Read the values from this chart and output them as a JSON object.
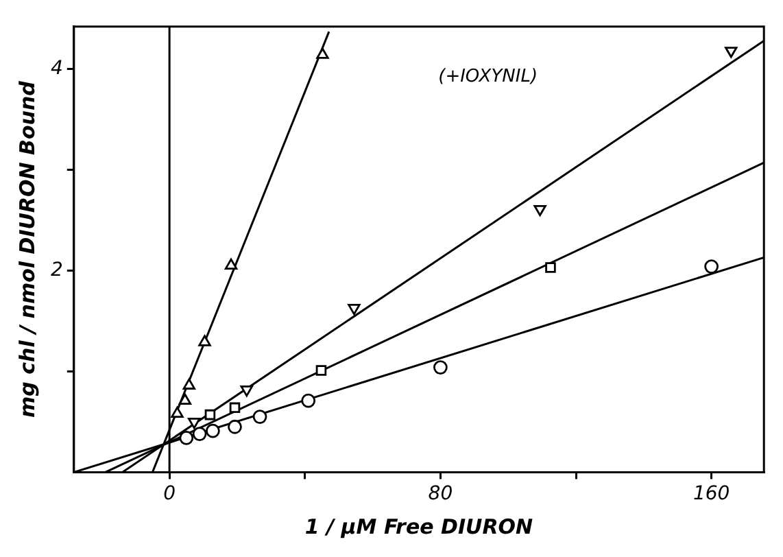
{
  "chart_data": {
    "type": "scatter",
    "xlabel": "1 / μM Free DIURON",
    "ylabel": "mg chl / nmol DIURON Bound",
    "annotations": [
      "(+IOXYNIL)"
    ],
    "xlim": [
      -28.2,
      175.5
    ],
    "ylim": [
      0,
      4.42
    ],
    "xticks": [
      0,
      {
        "value": 40,
        "label": null
      },
      80,
      {
        "value": 120,
        "label": null
      },
      160
    ],
    "yticks": [
      {
        "value": 1,
        "label": null
      },
      2,
      {
        "value": 3,
        "label": null
      },
      4
    ],
    "grid": false,
    "legend": false,
    "ref_lines": [
      {
        "axis": "x",
        "value": 0,
        "color": "#000000"
      }
    ],
    "series": [
      {
        "type": "scatter",
        "marker": "triangle",
        "color": "#000000",
        "x": [
          2.3,
          4.6,
          5.8,
          10.4,
          18.2,
          45.2
        ],
        "values": [
          0.58,
          0.71,
          0.86,
          1.29,
          2.05,
          4.14
        ]
      },
      {
        "type": "scatter",
        "marker": "triangle-down",
        "color": "#000000",
        "x": [
          7.3,
          22.8,
          54.5,
          109.4,
          165.8
        ],
        "values": [
          0.5,
          0.82,
          1.63,
          2.61,
          4.18
        ]
      },
      {
        "type": "scatter",
        "marker": "square",
        "color": "#000000",
        "x": [
          12,
          19.3,
          44.8,
          112.5
        ],
        "values": [
          0.57,
          0.64,
          1.01,
          2.03
        ]
      },
      {
        "type": "scatter",
        "marker": "circle",
        "color": "#000000",
        "x": [
          5,
          8.9,
          12.8,
          19.3,
          26.7,
          41,
          80,
          160
        ],
        "values": [
          0.34,
          0.38,
          0.41,
          0.45,
          0.55,
          0.71,
          1.04,
          2.04
        ]
      },
      {
        "type": "line",
        "marker": "none",
        "color": "#000000",
        "x": [
          -5,
          47.1
        ],
        "values": [
          0,
          4.37
        ]
      },
      {
        "type": "line",
        "marker": "none",
        "color": "#000000",
        "x": [
          -13.9,
          175.5
        ],
        "values": [
          0,
          4.28
        ]
      },
      {
        "type": "line",
        "marker": "none",
        "color": "#000000",
        "x": [
          -18.9,
          175.5
        ],
        "values": [
          0,
          3.07
        ]
      },
      {
        "type": "line",
        "marker": "none",
        "color": "#000000",
        "x": [
          -28.2,
          175.5
        ],
        "values": [
          0,
          2.13
        ]
      }
    ]
  }
}
